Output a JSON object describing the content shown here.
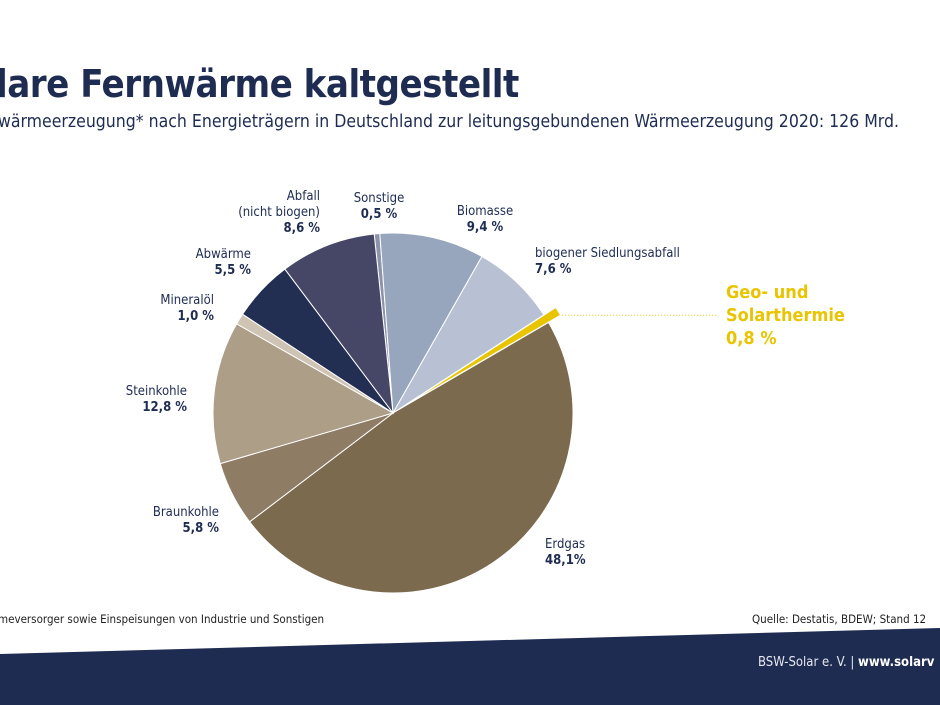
{
  "chart_data": {
    "type": "pie",
    "title": "lare Fernwärme kaltgestellt",
    "subtitle": "wärmeerzeugung* nach Energieträgern in Deutschland zur leitungsgebundenen Wärmeerzeugung 2020: 126 Mrd.",
    "slices": [
      {
        "label": "Sonstige",
        "value": 0.5,
        "value_label": "0,5 %",
        "color": "#8d93ab"
      },
      {
        "label": "Biomasse",
        "value": 9.4,
        "value_label": "9,4 %",
        "color": "#98a6bd"
      },
      {
        "label": "biogener Siedlungsabfall",
        "value": 7.6,
        "value_label": "7,6 %",
        "color": "#b8c1d3"
      },
      {
        "label": "Geo- und Solarthermie",
        "value": 0.8,
        "value_label": "0,8 %",
        "color": "#e9c400",
        "highlighted": true
      },
      {
        "label": "Erdgas",
        "value": 48.1,
        "value_label": "48,1%",
        "color": "#7b6a4e"
      },
      {
        "label": "Braunkohle",
        "value": 5.8,
        "value_label": "5,8 %",
        "color": "#8e7c64"
      },
      {
        "label": "Steinkohle",
        "value": 12.8,
        "value_label": "12,8 %",
        "color": "#ad9e88"
      },
      {
        "label": "Mineralöl",
        "value": 1.0,
        "value_label": "1,0 %",
        "color": "#cfc4b3"
      },
      {
        "label": "Abwärme",
        "value": 5.5,
        "value_label": "5,5 %",
        "color": "#222f52"
      },
      {
        "label": "Abfall (nicht biogen)",
        "value": 8.6,
        "value_label": "8,6 %",
        "color": "#464766"
      }
    ]
  },
  "footnote": "meversorger sowie Einspeisungen von Industrie und Sonstigen",
  "source": "Quelle: Destatis, BDEW; Stand 12",
  "footer": {
    "org": "BSW-Solar e. V. |",
    "url": "www.solarv"
  },
  "colors": {
    "navy": "#1f2c52",
    "highlight": "#e9c400"
  }
}
